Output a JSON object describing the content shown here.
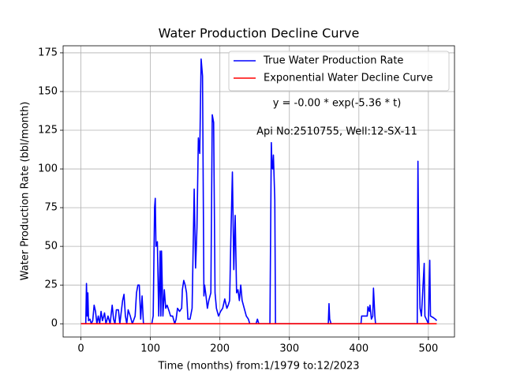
{
  "chart_data": {
    "type": "line",
    "title": "Water Production Decline Curve",
    "x_label": "Time (months) from:1/1979 to:12/2023",
    "y_label": "Water Production Rate (bbl/month)",
    "annotations": [
      "y = -0.00 * exp(-5.36 * t)",
      "Api No:2510755, Well:12-SX-11"
    ],
    "series": [
      {
        "name": "True Water Production Rate",
        "color": "#0000ff",
        "x": [
          0,
          7,
          8,
          9,
          10,
          11,
          13,
          15,
          17,
          19,
          21,
          23,
          25,
          27,
          29,
          31,
          34,
          36,
          39,
          42,
          45,
          47,
          49,
          51,
          54,
          56,
          60,
          62,
          64,
          66,
          68,
          71,
          74,
          78,
          80,
          82,
          84,
          86,
          88,
          90,
          102,
          104,
          106,
          107,
          108,
          110,
          112,
          114,
          115,
          116,
          118,
          120,
          122,
          124,
          127,
          129,
          132,
          135,
          137,
          139,
          142,
          145,
          146,
          148,
          150,
          152,
          154,
          157,
          160,
          163,
          165,
          167,
          169,
          171,
          173,
          175,
          177,
          178,
          180,
          182,
          184,
          187,
          189,
          191,
          193,
          195,
          198,
          201,
          204,
          207,
          210,
          212,
          214,
          216,
          218,
          220,
          222,
          224,
          226,
          228,
          230,
          232,
          235,
          238,
          241,
          243,
          252,
          254,
          256,
          272,
          274,
          275,
          276,
          277,
          279,
          280,
          356,
          357,
          358,
          360,
          403,
          404,
          412,
          413,
          415,
          416,
          418,
          420,
          421,
          423,
          424,
          484,
          485,
          486,
          488,
          490,
          494,
          495,
          497,
          500,
          502,
          503,
          507,
          510,
          512
        ],
        "values": [
          0,
          0,
          26,
          5,
          20,
          2,
          3,
          0,
          2,
          12,
          8,
          0,
          5,
          0,
          8,
          2,
          7,
          0,
          5,
          0,
          12,
          3,
          0,
          9,
          9,
          0,
          15,
          19,
          5,
          0,
          9,
          5,
          0,
          5,
          20,
          25,
          25,
          3,
          18,
          0,
          0,
          5,
          75,
          81,
          50,
          53,
          5,
          47,
          5,
          47,
          5,
          22,
          10,
          12,
          8,
          5,
          5,
          0,
          3,
          10,
          8,
          10,
          22,
          28,
          25,
          20,
          3,
          3,
          10,
          87,
          36,
          62,
          120,
          110,
          171,
          160,
          18,
          25,
          18,
          10,
          15,
          20,
          135,
          130,
          20,
          10,
          5,
          8,
          10,
          16,
          10,
          12,
          15,
          60,
          98,
          35,
          70,
          20,
          22,
          15,
          25,
          15,
          10,
          5,
          3,
          0,
          0,
          3,
          0,
          0,
          117,
          101,
          100,
          109,
          80,
          0,
          0,
          13,
          3,
          0,
          0,
          5,
          5,
          11,
          8,
          12,
          3,
          5,
          23,
          5,
          0,
          0,
          105,
          50,
          10,
          5,
          39,
          5,
          3,
          0,
          41,
          5,
          4,
          3,
          2
        ]
      },
      {
        "name": "Exponential Water Decline Curve",
        "color": "#ff0000",
        "x": [
          0,
          512
        ],
        "values": [
          0,
          0
        ]
      }
    ],
    "xlim": [
      -25.6,
      537.6
    ],
    "xticks": [
      0,
      100,
      200,
      300,
      400,
      500
    ],
    "ylim": [
      -8.55,
      179.55
    ],
    "yticks": [
      0,
      25,
      50,
      75,
      100,
      125,
      150,
      175
    ],
    "grid": true,
    "legend": "upper right"
  }
}
